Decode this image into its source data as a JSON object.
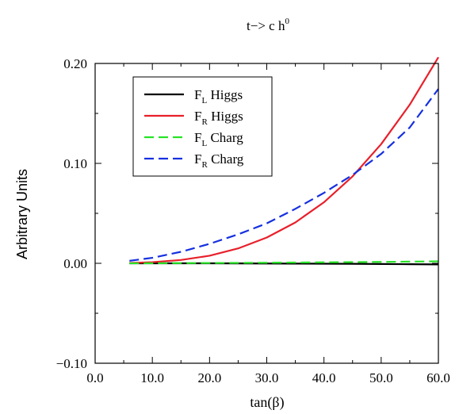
{
  "chart_data": {
    "type": "line",
    "title": {
      "main": "t−> c h",
      "sup": "0"
    },
    "xlabel": "tan(β)",
    "ylabel": "Arbitrary Units",
    "xlim": [
      0.0,
      60.0
    ],
    "ylim": [
      -0.1,
      0.2
    ],
    "x_ticks": [
      0.0,
      10.0,
      20.0,
      30.0,
      40.0,
      50.0,
      60.0
    ],
    "x_tick_labels": [
      "0.0",
      "10.0",
      "20.0",
      "30.0",
      "40.0",
      "50.0",
      "60.0"
    ],
    "y_ticks": [
      -0.1,
      0.0,
      0.1,
      0.2
    ],
    "y_tick_labels": [
      "−0.10",
      "0.00",
      "0.10",
      "0.20"
    ],
    "grid": false,
    "legend_position": "top-left",
    "x": [
      6,
      10,
      15,
      20,
      25,
      30,
      35,
      40,
      45,
      50,
      55,
      60
    ],
    "series": [
      {
        "name": "F_L Higgs",
        "label": {
          "base": "F",
          "sub": "L",
          "text": "Higgs"
        },
        "color": "#000000",
        "style": "solid",
        "values": [
          0.0,
          0.0,
          0.0,
          0.0,
          -0.0001,
          -0.0002,
          -0.0003,
          -0.0004,
          -0.0005,
          -0.0007,
          -0.0009,
          -0.0011
        ]
      },
      {
        "name": "F_R Higgs",
        "label": {
          "base": "F",
          "sub": "R",
          "text": "Higgs"
        },
        "color": "#e8202a",
        "style": "solid",
        "values": [
          0.0003,
          0.0011,
          0.0033,
          0.0076,
          0.0149,
          0.0258,
          0.0409,
          0.0611,
          0.087,
          0.1193,
          0.1588,
          0.2062
        ]
      },
      {
        "name": "F_L Charg",
        "label": {
          "base": "F",
          "sub": "L",
          "text": "Charg"
        },
        "color": "#27e327",
        "style": "dashed",
        "values": [
          0.0,
          0.0001,
          0.0002,
          0.0003,
          0.0004,
          0.0006,
          0.0008,
          0.001,
          0.0012,
          0.0014,
          0.0017,
          0.002
        ]
      },
      {
        "name": "F_R Charg",
        "label": {
          "base": "F",
          "sub": "R",
          "text": "Charg"
        },
        "color": "#1530e0",
        "style": "dashed",
        "values": [
          0.0025,
          0.0055,
          0.0115,
          0.0195,
          0.029,
          0.04,
          0.0545,
          0.0705,
          0.0885,
          0.1095,
          0.136,
          0.1745
        ]
      }
    ]
  }
}
